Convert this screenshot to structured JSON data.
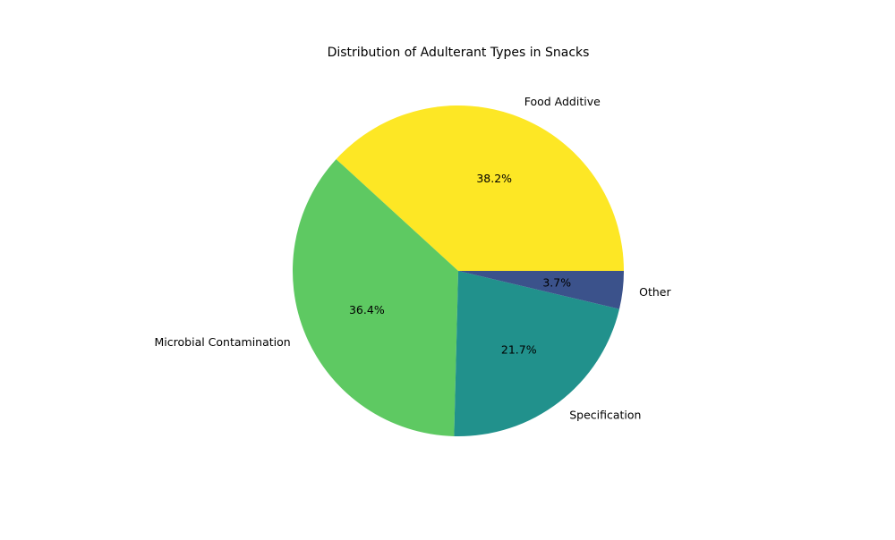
{
  "chart_data": {
    "type": "pie",
    "title": "Distribution of Adulterant Types in Snacks",
    "start_angle_deg": 0,
    "direction": "counterclockwise",
    "slices": [
      {
        "label": "Food Additive",
        "value": 38.2,
        "pct_label": "38.2%",
        "color": "#fde725"
      },
      {
        "label": "Microbial Contamination",
        "value": 36.4,
        "pct_label": "36.4%",
        "color": "#5ec962"
      },
      {
        "label": "Specification",
        "value": 21.7,
        "pct_label": "21.7%",
        "color": "#21918c"
      },
      {
        "label": "Other",
        "value": 3.7,
        "pct_label": "3.7%",
        "color": "#3b528b"
      }
    ]
  }
}
